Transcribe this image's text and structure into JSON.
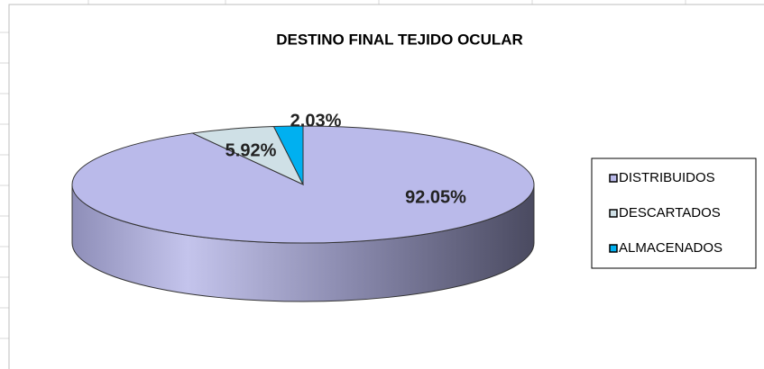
{
  "chart_data": {
    "type": "pie",
    "title": "DESTINO FINAL TEJIDO OCULAR",
    "categories": [
      "DISTRIBUIDOS",
      "DESCARTADOS",
      "ALMACENADOS"
    ],
    "values": [
      92.05,
      5.92,
      2.03
    ],
    "value_labels": [
      "92.05%",
      "5.92%",
      "2.03%"
    ],
    "colors": [
      "#babaea",
      "#cfe0e6",
      "#00b0f0"
    ],
    "legend": "right"
  }
}
